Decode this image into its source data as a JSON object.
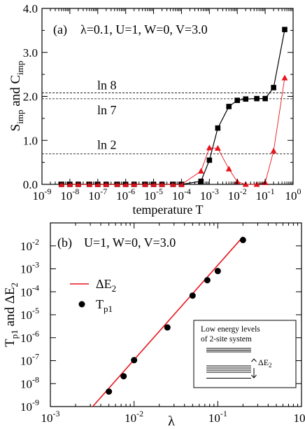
{
  "chart_data": [
    {
      "type": "scatter",
      "panel": "(a)",
      "params": "λ=0.1, U=1, W=0, V=3.0",
      "xlabel": "temperature T",
      "ylabel": "S_imp and C_imp",
      "xscale": "log",
      "xlim": [
        1e-09,
        1
      ],
      "ylim": [
        0,
        4
      ],
      "yticks": [
        0.0,
        1.0,
        2.0,
        3.0,
        4.0
      ],
      "yticklabels": [
        "0.0",
        "1.0",
        "2.0",
        "3.0",
        "4.0"
      ],
      "xtick_exponents": [
        -9,
        -8,
        -7,
        -6,
        -5,
        -4,
        -3,
        -2,
        -1,
        0
      ],
      "reference_lines": [
        {
          "label": "ln 8",
          "y": 2.079
        },
        {
          "label": "ln 7",
          "y": 1.946
        },
        {
          "label": "ln 2",
          "y": 0.693
        }
      ],
      "series": [
        {
          "label": "S_imp",
          "marker": "square",
          "color": "#000000",
          "x": [
            5e-09,
            1e-08,
            2e-08,
            5e-08,
            1e-07,
            2e-07,
            5e-07,
            1e-06,
            2e-06,
            5e-06,
            1e-05,
            2e-05,
            5e-05,
            0.0001,
            0.0005,
            0.001,
            0.002,
            0.005,
            0.01,
            0.02,
            0.05,
            0.1,
            0.2,
            0.5
          ],
          "y": [
            0,
            0,
            0,
            0,
            0,
            0,
            0,
            0,
            0,
            0,
            0,
            0,
            0,
            0,
            0.07,
            0.55,
            1.28,
            1.77,
            1.91,
            1.94,
            1.95,
            1.95,
            2.2,
            3.52
          ]
        },
        {
          "label": "C_imp",
          "marker": "triangle",
          "color": "#e8141c",
          "x": [
            5e-09,
            1e-08,
            2e-08,
            5e-08,
            1e-07,
            2e-07,
            5e-07,
            1e-06,
            2e-06,
            5e-06,
            1e-05,
            2e-05,
            5e-05,
            0.0001,
            0.0005,
            0.001,
            0.002,
            0.005,
            0.01,
            0.02,
            0.05,
            0.1,
            0.2,
            0.5
          ],
          "y": [
            0,
            0,
            0,
            0,
            0,
            0,
            0,
            0,
            0,
            0,
            0,
            0,
            0,
            0,
            0.3,
            0.83,
            0.82,
            0.35,
            0.06,
            0.0,
            0.0,
            0.04,
            0.76,
            2.42
          ]
        }
      ]
    },
    {
      "type": "scatter",
      "panel": "(b)",
      "params": "U=1, W=0, V=3.0",
      "xlabel": "λ",
      "ylabel": "T_p1 and ΔE_2",
      "xscale": "log",
      "yscale": "log",
      "xlim": [
        0.001,
        1
      ],
      "ylim": [
        1e-09,
        0.1
      ],
      "xtick_exponents": [
        -3,
        -2,
        -1,
        0
      ],
      "ytick_exponents": [
        -9,
        -8,
        -7,
        -6,
        -5,
        -4,
        -3,
        -2
      ],
      "legend": [
        {
          "label": "ΔE",
          "sub": "2",
          "style": "line",
          "color": "#e8141c"
        },
        {
          "label": "T",
          "sub": "p1",
          "style": "dot",
          "color": "#000000"
        }
      ],
      "line_dE2": {
        "x": [
          0.0032,
          0.2
        ],
        "y": [
          1e-09,
          0.025
        ]
      },
      "points_Tp1": {
        "x": [
          0.005,
          0.0075,
          0.01,
          0.025,
          0.05,
          0.075,
          0.1,
          0.2
        ],
        "y": [
          4.5e-09,
          2.1e-08,
          1.05e-07,
          2.8e-06,
          6.8e-05,
          0.00032,
          0.0008,
          0.018
        ]
      },
      "inset": {
        "title_line1": "Low energy levels",
        "title_line2": "of 2-site system",
        "arrow_label": "ΔE",
        "arrow_sub": "2"
      }
    }
  ]
}
